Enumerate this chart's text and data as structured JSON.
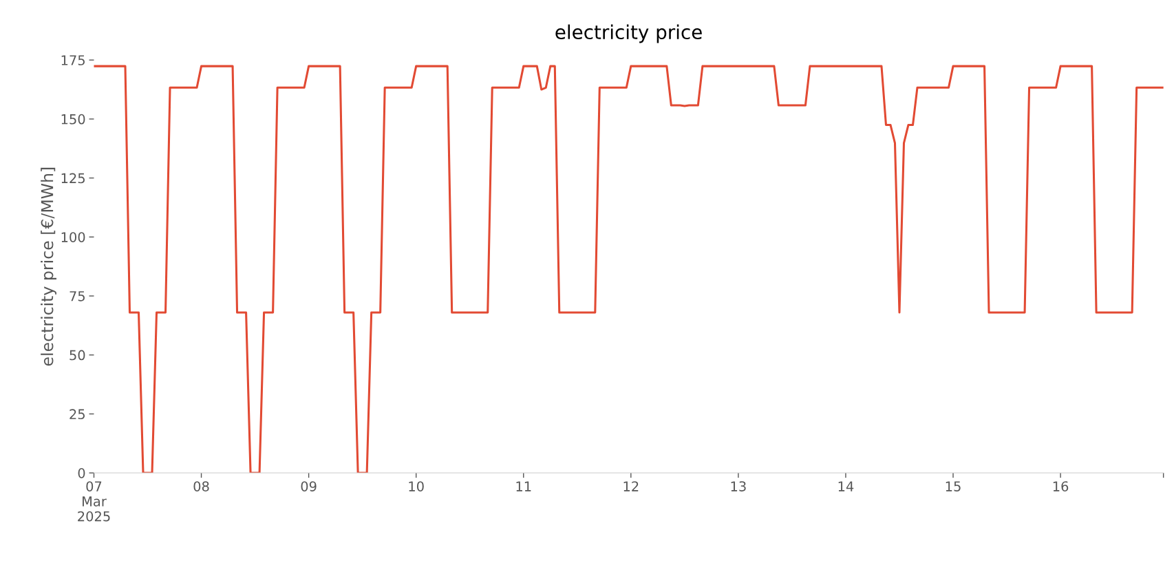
{
  "chart_data": {
    "type": "line",
    "title": "electricity price",
    "ylabel": "electricity price [€/MWh]",
    "x": [
      "2025-03-07T00:00",
      "2025-03-07T07:00",
      "2025-03-07T08:00",
      "2025-03-07T10:00",
      "2025-03-07T11:00",
      "2025-03-07T13:00",
      "2025-03-07T14:00",
      "2025-03-07T16:00",
      "2025-03-07T17:00",
      "2025-03-07T23:00",
      "2025-03-08T00:00",
      "2025-03-08T07:00",
      "2025-03-08T08:00",
      "2025-03-08T10:00",
      "2025-03-08T11:00",
      "2025-03-08T13:00",
      "2025-03-08T14:00",
      "2025-03-08T16:00",
      "2025-03-08T17:00",
      "2025-03-08T23:00",
      "2025-03-09T00:00",
      "2025-03-09T07:00",
      "2025-03-09T08:00",
      "2025-03-09T10:00",
      "2025-03-09T11:00",
      "2025-03-09T13:00",
      "2025-03-09T14:00",
      "2025-03-09T16:00",
      "2025-03-09T17:00",
      "2025-03-09T23:00",
      "2025-03-10T00:00",
      "2025-03-10T07:00",
      "2025-03-10T08:00",
      "2025-03-10T16:00",
      "2025-03-10T17:00",
      "2025-03-10T23:00",
      "2025-03-11T00:00",
      "2025-03-11T03:00",
      "2025-03-11T04:00",
      "2025-03-11T05:00",
      "2025-03-11T06:00",
      "2025-03-11T07:00",
      "2025-03-11T08:00",
      "2025-03-11T16:00",
      "2025-03-11T17:00",
      "2025-03-11T23:00",
      "2025-03-12T00:00",
      "2025-03-12T08:00",
      "2025-03-12T09:00",
      "2025-03-12T11:00",
      "2025-03-12T12:00",
      "2025-03-12T13:00",
      "2025-03-12T15:00",
      "2025-03-12T16:00",
      "2025-03-13T08:00",
      "2025-03-13T09:00",
      "2025-03-13T15:00",
      "2025-03-13T16:00",
      "2025-03-14T08:00",
      "2025-03-14T09:00",
      "2025-03-14T10:00",
      "2025-03-14T11:00",
      "2025-03-14T12:00",
      "2025-03-14T13:00",
      "2025-03-14T14:00",
      "2025-03-14T15:00",
      "2025-03-14T16:00",
      "2025-03-14T23:00",
      "2025-03-15T00:00",
      "2025-03-15T07:00",
      "2025-03-15T08:00",
      "2025-03-15T16:00",
      "2025-03-15T17:00",
      "2025-03-15T23:00",
      "2025-03-16T00:00",
      "2025-03-16T07:00",
      "2025-03-16T08:00",
      "2025-03-16T16:00",
      "2025-03-16T17:00",
      "2025-03-16T23:00"
    ],
    "series": [
      {
        "color": "#e24a33",
        "values": [
          172.4,
          172.4,
          68,
          68,
          0,
          0,
          68,
          68,
          163.3,
          163.3,
          172.4,
          172.4,
          68,
          68,
          0,
          0,
          68,
          68,
          163.3,
          163.3,
          172.4,
          172.4,
          68,
          68,
          0,
          0,
          68,
          68,
          163.3,
          163.3,
          172.4,
          172.4,
          68,
          68,
          163.3,
          163.3,
          172.4,
          172.4,
          162.5,
          163.3,
          172.4,
          172.4,
          68,
          68,
          163.3,
          163.3,
          172.4,
          172.4,
          155.8,
          155.8,
          155.5,
          155.8,
          155.8,
          172.4,
          172.4,
          155.8,
          155.8,
          172.4,
          172.4,
          147.5,
          147.5,
          139.8,
          68,
          139.8,
          147.5,
          147.5,
          163.3,
          163.3,
          172.4,
          172.4,
          68,
          68,
          163.3,
          163.3,
          172.4,
          172.4,
          68,
          68,
          163.3,
          163.3
        ]
      }
    ],
    "xlim": [
      "2025-03-07T00:00",
      "2025-03-16T23:00"
    ],
    "xticks": [
      {
        "value": "2025-03-07",
        "label": "07\nMar\n2025"
      },
      {
        "value": "2025-03-08",
        "label": "08"
      },
      {
        "value": "2025-03-09",
        "label": "09"
      },
      {
        "value": "2025-03-10",
        "label": "10"
      },
      {
        "value": "2025-03-11",
        "label": "11"
      },
      {
        "value": "2025-03-12",
        "label": "12"
      },
      {
        "value": "2025-03-13",
        "label": "13"
      },
      {
        "value": "2025-03-14",
        "label": "14"
      },
      {
        "value": "2025-03-15",
        "label": "15"
      },
      {
        "value": "2025-03-16",
        "label": "16"
      },
      {
        "value": "2025-03-16T23:00",
        "label": null
      }
    ],
    "ylim": [
      0,
      175
    ],
    "yticks": [
      0,
      25,
      50,
      75,
      100,
      125,
      150,
      175
    ],
    "grid": false,
    "legend": false,
    "line_style": "solid",
    "marker": "none"
  }
}
